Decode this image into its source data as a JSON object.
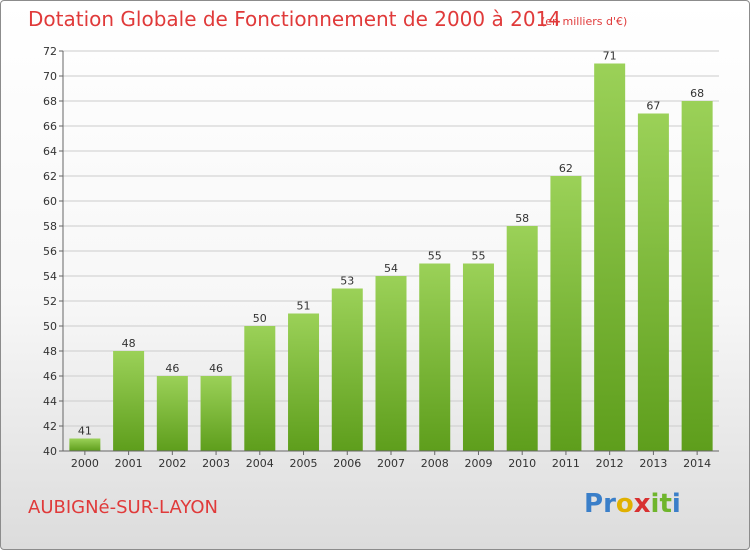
{
  "header": {
    "title": "Dotation Globale de Fonctionnement de 2000 à 2014",
    "subtitle": "(en milliers d'€)"
  },
  "footer": {
    "town": "AUBIGNé-SUR-LAYON",
    "logo": [
      "P",
      "r",
      "o",
      "x",
      "i",
      "t",
      "i"
    ],
    "logo_colors": [
      "#3a7fc9",
      "#3a7fc9",
      "#e0b000",
      "#d83030",
      "#6fb52c",
      "#6fb52c",
      "#3a7fc9"
    ]
  },
  "colors": {
    "bar_top": "#9bd158",
    "bar_bottom": "#5e9e1c",
    "title": "#e03a3a",
    "grid": "#cccccc",
    "axis_text": "#333333"
  },
  "chart_data": {
    "type": "bar",
    "categories": [
      "2000",
      "2001",
      "2002",
      "2003",
      "2004",
      "2005",
      "2006",
      "2007",
      "2008",
      "2009",
      "2010",
      "2011",
      "2012",
      "2013",
      "2014"
    ],
    "values": [
      41,
      48,
      46,
      46,
      50,
      51,
      53,
      54,
      55,
      55,
      58,
      62,
      71,
      67,
      68
    ],
    "title": "Dotation Globale de Fonctionnement de 2000 à 2014",
    "xlabel": "",
    "ylabel": "",
    "ylim": [
      40,
      72
    ],
    "yticks": [
      40,
      42,
      44,
      46,
      48,
      50,
      52,
      54,
      56,
      58,
      60,
      62,
      64,
      66,
      68,
      70,
      72
    ],
    "grid": true,
    "data_labels": true
  }
}
